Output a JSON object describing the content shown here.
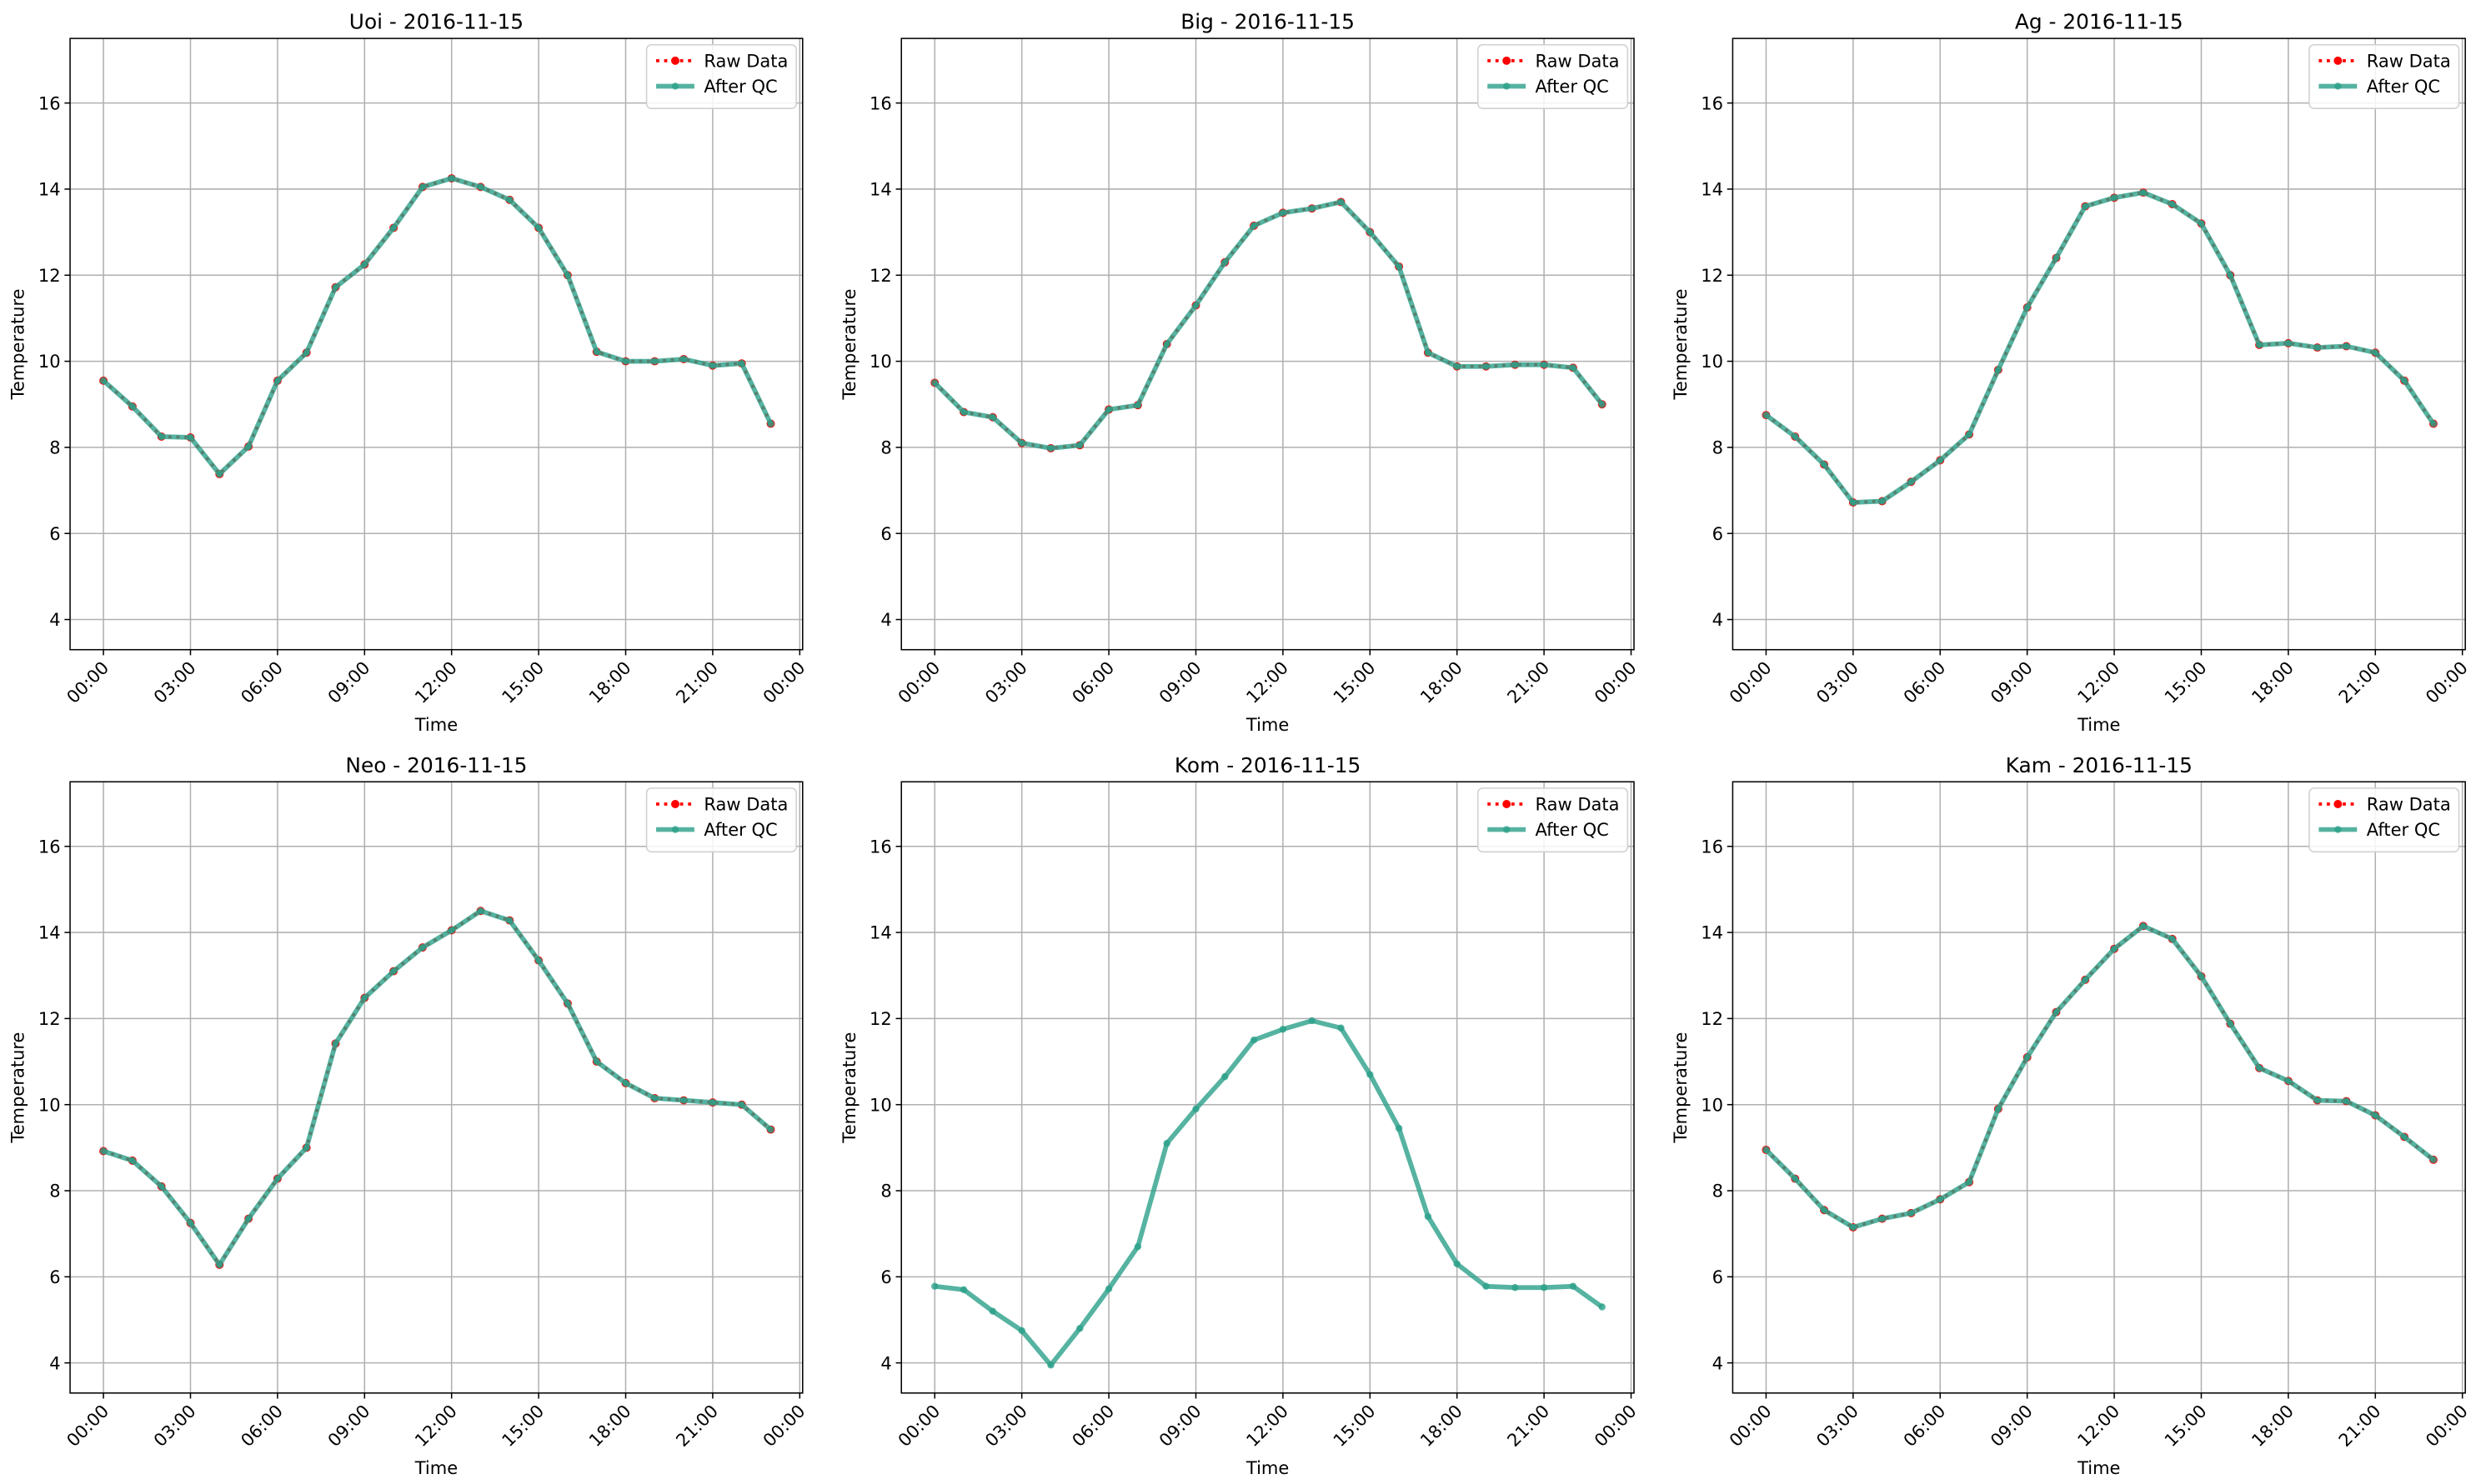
{
  "chart_data": [
    {
      "type": "line",
      "title": "Uoi - 2016-11-15",
      "xlabel": "Time",
      "ylabel": "Temperature",
      "grid": true,
      "legend": "upper right",
      "x": [
        0,
        1,
        2,
        3,
        4,
        5,
        6,
        7,
        8,
        9,
        10,
        11,
        12,
        13,
        14,
        15,
        16,
        17,
        18,
        19,
        20,
        21,
        22,
        23
      ],
      "xlim": [
        -1.15,
        24.1
      ],
      "ylim": [
        3.3,
        17.5
      ],
      "xticks": [
        {
          "value": 0,
          "label": "00:00"
        },
        {
          "value": 3,
          "label": "03:00"
        },
        {
          "value": 6,
          "label": "06:00"
        },
        {
          "value": 9,
          "label": "09:00"
        },
        {
          "value": 12,
          "label": "12:00"
        },
        {
          "value": 15,
          "label": "15:00"
        },
        {
          "value": 18,
          "label": "18:00"
        },
        {
          "value": 21,
          "label": "21:00"
        },
        {
          "value": 24,
          "label": "00:00"
        }
      ],
      "yticks": [
        4,
        6,
        8,
        10,
        12,
        14,
        16
      ],
      "series": [
        {
          "name": "Raw Data",
          "color": "#ff0000",
          "values": [
            9.55,
            8.95,
            8.25,
            8.23,
            7.38,
            8.02,
            9.55,
            10.2,
            11.72,
            12.25,
            13.1,
            14.05,
            14.25,
            14.05,
            13.75,
            13.1,
            12.0,
            10.22,
            10.0,
            10.0,
            10.05,
            9.9,
            9.95,
            8.55
          ]
        },
        {
          "name": "After QC",
          "color": "#2ca089",
          "values": [
            9.55,
            8.95,
            8.25,
            8.23,
            7.38,
            8.02,
            9.55,
            10.2,
            11.72,
            12.25,
            13.1,
            14.05,
            14.25,
            14.05,
            13.75,
            13.1,
            12.0,
            10.22,
            10.0,
            10.0,
            10.05,
            9.9,
            9.95,
            8.55
          ]
        }
      ]
    },
    {
      "type": "line",
      "title": "Big - 2016-11-15",
      "xlabel": "Time",
      "ylabel": "Temperature",
      "grid": true,
      "legend": "upper right",
      "x": [
        0,
        1,
        2,
        3,
        4,
        5,
        6,
        7,
        8,
        9,
        10,
        11,
        12,
        13,
        14,
        15,
        16,
        17,
        18,
        19,
        20,
        21,
        22,
        23
      ],
      "xlim": [
        -1.15,
        24.1
      ],
      "ylim": [
        3.3,
        17.5
      ],
      "xticks": [
        {
          "value": 0,
          "label": "00:00"
        },
        {
          "value": 3,
          "label": "03:00"
        },
        {
          "value": 6,
          "label": "06:00"
        },
        {
          "value": 9,
          "label": "09:00"
        },
        {
          "value": 12,
          "label": "12:00"
        },
        {
          "value": 15,
          "label": "15:00"
        },
        {
          "value": 18,
          "label": "18:00"
        },
        {
          "value": 21,
          "label": "21:00"
        },
        {
          "value": 24,
          "label": "00:00"
        }
      ],
      "yticks": [
        4,
        6,
        8,
        10,
        12,
        14,
        16
      ],
      "series": [
        {
          "name": "Raw Data",
          "color": "#ff0000",
          "values": [
            9.5,
            8.82,
            8.7,
            8.1,
            7.98,
            8.05,
            8.88,
            8.98,
            10.4,
            11.3,
            12.3,
            13.15,
            13.45,
            13.55,
            13.7,
            13.0,
            12.2,
            10.2,
            9.88,
            9.88,
            9.92,
            9.92,
            9.85,
            9.0
          ]
        },
        {
          "name": "After QC",
          "color": "#2ca089",
          "values": [
            9.5,
            8.82,
            8.7,
            8.1,
            7.98,
            8.05,
            8.88,
            8.98,
            10.4,
            11.3,
            12.3,
            13.15,
            13.45,
            13.55,
            13.7,
            13.0,
            12.2,
            10.2,
            9.88,
            9.88,
            9.92,
            9.92,
            9.85,
            9.0
          ]
        }
      ]
    },
    {
      "type": "line",
      "title": "Ag - 2016-11-15",
      "xlabel": "Time",
      "ylabel": "Temperature",
      "grid": true,
      "legend": "upper right",
      "x": [
        0,
        1,
        2,
        3,
        4,
        5,
        6,
        7,
        8,
        9,
        10,
        11,
        12,
        13,
        14,
        15,
        16,
        17,
        18,
        19,
        20,
        21,
        22,
        23
      ],
      "xlim": [
        -1.15,
        24.1
      ],
      "ylim": [
        3.3,
        17.5
      ],
      "xticks": [
        {
          "value": 0,
          "label": "00:00"
        },
        {
          "value": 3,
          "label": "03:00"
        },
        {
          "value": 6,
          "label": "06:00"
        },
        {
          "value": 9,
          "label": "09:00"
        },
        {
          "value": 12,
          "label": "12:00"
        },
        {
          "value": 15,
          "label": "15:00"
        },
        {
          "value": 18,
          "label": "18:00"
        },
        {
          "value": 21,
          "label": "21:00"
        },
        {
          "value": 24,
          "label": "00:00"
        }
      ],
      "yticks": [
        4,
        6,
        8,
        10,
        12,
        14,
        16
      ],
      "series": [
        {
          "name": "Raw Data",
          "color": "#ff0000",
          "values": [
            8.75,
            8.25,
            7.6,
            6.72,
            6.75,
            7.2,
            7.7,
            8.3,
            9.8,
            11.25,
            12.4,
            13.6,
            13.8,
            13.92,
            13.65,
            13.2,
            12.0,
            10.38,
            10.42,
            10.32,
            10.35,
            10.2,
            9.55,
            8.55
          ]
        },
        {
          "name": "After QC",
          "color": "#2ca089",
          "values": [
            8.75,
            8.25,
            7.6,
            6.72,
            6.75,
            7.2,
            7.7,
            8.3,
            9.8,
            11.25,
            12.4,
            13.6,
            13.8,
            13.92,
            13.65,
            13.2,
            12.0,
            10.38,
            10.42,
            10.32,
            10.35,
            10.2,
            9.55,
            8.55
          ]
        }
      ]
    },
    {
      "type": "line",
      "title": "Neo - 2016-11-15",
      "xlabel": "Time",
      "ylabel": "Temperature",
      "grid": true,
      "legend": "upper right",
      "x": [
        0,
        1,
        2,
        3,
        4,
        5,
        6,
        7,
        8,
        9,
        10,
        11,
        12,
        13,
        14,
        15,
        16,
        17,
        18,
        19,
        20,
        21,
        22,
        23
      ],
      "xlim": [
        -1.15,
        24.1
      ],
      "ylim": [
        3.3,
        17.5
      ],
      "xticks": [
        {
          "value": 0,
          "label": "00:00"
        },
        {
          "value": 3,
          "label": "03:00"
        },
        {
          "value": 6,
          "label": "06:00"
        },
        {
          "value": 9,
          "label": "09:00"
        },
        {
          "value": 12,
          "label": "12:00"
        },
        {
          "value": 15,
          "label": "15:00"
        },
        {
          "value": 18,
          "label": "18:00"
        },
        {
          "value": 21,
          "label": "21:00"
        },
        {
          "value": 24,
          "label": "00:00"
        }
      ],
      "yticks": [
        4,
        6,
        8,
        10,
        12,
        14,
        16
      ],
      "series": [
        {
          "name": "Raw Data",
          "color": "#ff0000",
          "values": [
            8.92,
            8.7,
            8.1,
            7.25,
            6.28,
            7.35,
            8.28,
            9.0,
            11.42,
            12.48,
            13.1,
            13.65,
            14.05,
            14.5,
            14.28,
            13.35,
            12.35,
            11.0,
            10.5,
            10.15,
            10.1,
            10.05,
            10.0,
            9.42
          ]
        },
        {
          "name": "After QC",
          "color": "#2ca089",
          "values": [
            8.92,
            8.7,
            8.1,
            7.25,
            6.28,
            7.35,
            8.28,
            9.0,
            11.42,
            12.48,
            13.1,
            13.65,
            14.05,
            14.5,
            14.28,
            13.35,
            12.35,
            11.0,
            10.5,
            10.15,
            10.1,
            10.05,
            10.0,
            9.42
          ]
        }
      ]
    },
    {
      "type": "line",
      "title": "Kom - 2016-11-15",
      "xlabel": "Time",
      "ylabel": "Temperature",
      "grid": true,
      "legend": "upper right",
      "x": [
        0,
        1,
        2,
        3,
        4,
        5,
        6,
        7,
        8,
        9,
        10,
        11,
        12,
        13,
        14,
        15,
        16,
        17,
        18,
        19,
        20,
        21,
        22,
        23
      ],
      "xlim": [
        -1.15,
        24.1
      ],
      "ylim": [
        3.3,
        17.5
      ],
      "xticks": [
        {
          "value": 0,
          "label": "00:00"
        },
        {
          "value": 3,
          "label": "03:00"
        },
        {
          "value": 6,
          "label": "06:00"
        },
        {
          "value": 9,
          "label": "09:00"
        },
        {
          "value": 12,
          "label": "12:00"
        },
        {
          "value": 15,
          "label": "15:00"
        },
        {
          "value": 18,
          "label": "18:00"
        },
        {
          "value": 21,
          "label": "21:00"
        },
        {
          "value": 24,
          "label": "00:00"
        }
      ],
      "yticks": [
        4,
        6,
        8,
        10,
        12,
        14,
        16
      ],
      "series": [
        {
          "name": "Raw Data",
          "color": "#ff0000",
          "values": [
            null,
            null,
            null,
            null,
            null,
            null,
            null,
            null,
            null,
            null,
            null,
            null,
            null,
            null,
            null,
            null,
            null,
            null,
            null,
            null,
            null,
            null,
            null,
            null
          ]
        },
        {
          "name": "After QC",
          "color": "#2ca089",
          "values": [
            5.78,
            5.7,
            5.2,
            4.75,
            3.95,
            4.8,
            5.72,
            6.7,
            9.1,
            9.9,
            10.65,
            11.5,
            11.75,
            11.95,
            11.78,
            10.7,
            9.45,
            7.4,
            6.3,
            5.78,
            5.75,
            5.75,
            5.78,
            5.3
          ]
        }
      ]
    },
    {
      "type": "line",
      "title": "Kam - 2016-11-15",
      "xlabel": "Time",
      "ylabel": "Temperature",
      "grid": true,
      "legend": "upper right",
      "x": [
        0,
        1,
        2,
        3,
        4,
        5,
        6,
        7,
        8,
        9,
        10,
        11,
        12,
        13,
        14,
        15,
        16,
        17,
        18,
        19,
        20,
        21,
        22,
        23
      ],
      "xlim": [
        -1.15,
        24.1
      ],
      "ylim": [
        3.3,
        17.5
      ],
      "xticks": [
        {
          "value": 0,
          "label": "00:00"
        },
        {
          "value": 3,
          "label": "03:00"
        },
        {
          "value": 6,
          "label": "06:00"
        },
        {
          "value": 9,
          "label": "09:00"
        },
        {
          "value": 12,
          "label": "12:00"
        },
        {
          "value": 15,
          "label": "15:00"
        },
        {
          "value": 18,
          "label": "18:00"
        },
        {
          "value": 21,
          "label": "21:00"
        },
        {
          "value": 24,
          "label": "00:00"
        }
      ],
      "yticks": [
        4,
        6,
        8,
        10,
        12,
        14,
        16
      ],
      "series": [
        {
          "name": "Raw Data",
          "color": "#ff0000",
          "values": [
            8.95,
            8.28,
            7.55,
            7.15,
            7.35,
            7.48,
            7.8,
            8.2,
            9.9,
            11.1,
            12.15,
            12.9,
            13.62,
            14.15,
            13.85,
            12.98,
            11.88,
            10.85,
            10.55,
            10.1,
            10.08,
            9.75,
            9.25,
            8.72
          ]
        },
        {
          "name": "After QC",
          "color": "#2ca089",
          "values": [
            8.95,
            8.28,
            7.55,
            7.15,
            7.35,
            7.48,
            7.8,
            8.2,
            9.9,
            11.1,
            12.15,
            12.9,
            13.62,
            14.15,
            13.85,
            12.98,
            11.88,
            10.85,
            10.55,
            10.1,
            10.08,
            9.75,
            9.25,
            8.72
          ]
        }
      ]
    }
  ]
}
